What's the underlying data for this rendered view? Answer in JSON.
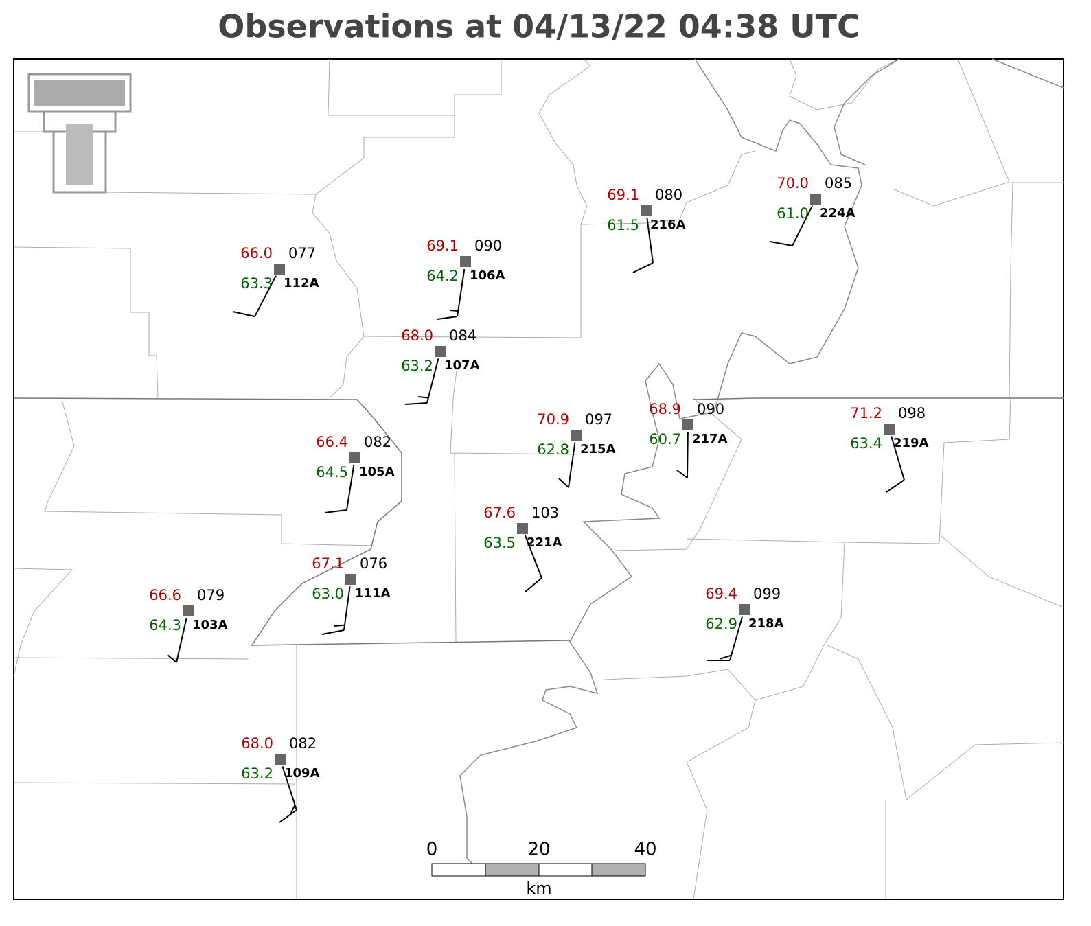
{
  "header": {
    "title": "Observations at 04/13/22 04:38 UTC"
  },
  "stations": [
    {
      "id": "112A",
      "temperature": "66.0",
      "dewpoint": "63.3",
      "pressure": "077"
    },
    {
      "id": "106A",
      "temperature": "69.1",
      "dewpoint": "64.2",
      "pressure": "090"
    },
    {
      "id": "107A",
      "temperature": "68.0",
      "dewpoint": "63.2",
      "pressure": "084"
    },
    {
      "id": "216A",
      "temperature": "69.1",
      "dewpoint": "61.5",
      "pressure": "080"
    },
    {
      "id": "224A",
      "temperature": "70.0",
      "dewpoint": "61.0",
      "pressure": "085"
    },
    {
      "id": "105A",
      "temperature": "66.4",
      "dewpoint": "64.5",
      "pressure": "082"
    },
    {
      "id": "215A",
      "temperature": "70.9",
      "dewpoint": "62.8",
      "pressure": "097"
    },
    {
      "id": "217A",
      "temperature": "68.9",
      "dewpoint": "60.7",
      "pressure": "090"
    },
    {
      "id": "219A",
      "temperature": "71.2",
      "dewpoint": "63.4",
      "pressure": "098"
    },
    {
      "id": "221A",
      "temperature": "67.6",
      "dewpoint": "63.5",
      "pressure": "103"
    },
    {
      "id": "111A",
      "temperature": "67.1",
      "dewpoint": "63.0",
      "pressure": "076"
    },
    {
      "id": "103A",
      "temperature": "66.6",
      "dewpoint": "64.3",
      "pressure": "079"
    },
    {
      "id": "218A",
      "temperature": "69.4",
      "dewpoint": "62.9",
      "pressure": "099"
    },
    {
      "id": "109A",
      "temperature": "68.0",
      "dewpoint": "63.2",
      "pressure": "082"
    }
  ],
  "scale_bar": {
    "labels": [
      "0",
      "20",
      "40"
    ],
    "unit": "km"
  }
}
